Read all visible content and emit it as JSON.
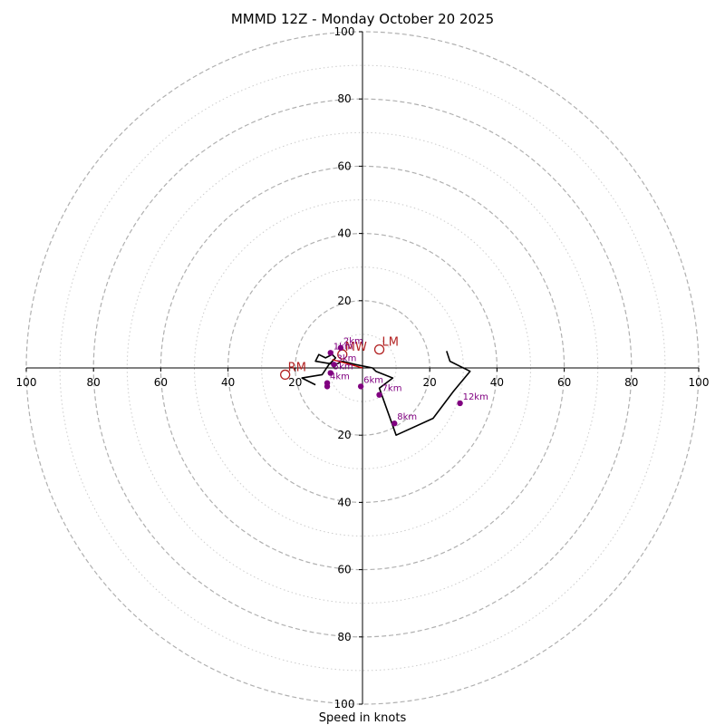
{
  "chart_data": {
    "type": "hodograph",
    "title": "MMMD 12Z - Monday October 20 2025",
    "xlabel": "Speed in knots",
    "units": "knots",
    "range": 100,
    "rings_major": [
      20,
      40,
      60,
      80,
      100
    ],
    "rings_minor": [
      10,
      30,
      50,
      70,
      90
    ],
    "ticks": {
      "x": [
        {
          "value": -100,
          "label": "100"
        },
        {
          "value": -80,
          "label": "80"
        },
        {
          "value": -60,
          "label": "60"
        },
        {
          "value": -40,
          "label": "40"
        },
        {
          "value": -20,
          "label": "20"
        },
        {
          "value": 20,
          "label": "20"
        },
        {
          "value": 40,
          "label": "40"
        },
        {
          "value": 60,
          "label": "60"
        },
        {
          "value": 80,
          "label": "80"
        },
        {
          "value": 100,
          "label": "100"
        }
      ],
      "y": [
        {
          "value": 100,
          "label": "100"
        },
        {
          "value": 80,
          "label": "80"
        },
        {
          "value": 60,
          "label": "60"
        },
        {
          "value": 40,
          "label": "40"
        },
        {
          "value": 20,
          "label": "20"
        },
        {
          "value": -20,
          "label": "20"
        },
        {
          "value": -40,
          "label": "40"
        },
        {
          "value": -60,
          "label": "60"
        },
        {
          "value": -80,
          "label": "80"
        },
        {
          "value": -100,
          "label": "100"
        }
      ]
    },
    "trace": {
      "color": "#000000",
      "u": [
        -14,
        -18,
        -12,
        -10,
        -8,
        -9,
        -11,
        -13,
        -14,
        -8,
        -6,
        -2,
        3,
        4,
        9,
        5,
        10,
        21,
        27,
        32,
        26,
        25
      ],
      "v": [
        -5,
        -3,
        -2,
        1,
        3,
        4,
        3,
        4,
        2,
        1,
        2,
        1,
        0,
        -1,
        -3,
        -6,
        -20,
        -15,
        -7,
        -1,
        2,
        5
      ]
    },
    "height_points": [
      {
        "label": "",
        "u": -10.5,
        "v": -5.5
      },
      {
        "label": "1km",
        "u": -9.5,
        "v": 4.5
      },
      {
        "label": "2km",
        "u": -6.5,
        "v": 6
      },
      {
        "label": "3km",
        "u": -8.5,
        "v": 1
      },
      {
        "label": "4km",
        "u": -10.5,
        "v": -4.5
      },
      {
        "label": "5km",
        "u": -9.5,
        "v": -1.5
      },
      {
        "label": "6km",
        "u": -0.5,
        "v": -5.5
      },
      {
        "label": "7km",
        "u": 5,
        "v": -8
      },
      {
        "label": "8km",
        "u": 9.5,
        "v": -16.5
      },
      {
        "label": "12km",
        "u": 29,
        "v": -10.5
      }
    ],
    "motion_markers": [
      {
        "label": "RM",
        "u": -23,
        "v": -2
      },
      {
        "label": "LM",
        "u": 5,
        "v": 5.5
      },
      {
        "label": "MW",
        "u": -6,
        "v": 4
      }
    ],
    "bunkers_vector": {
      "u1": 0,
      "v1": 0,
      "u2": -9,
      "v2": 2.5
    }
  }
}
